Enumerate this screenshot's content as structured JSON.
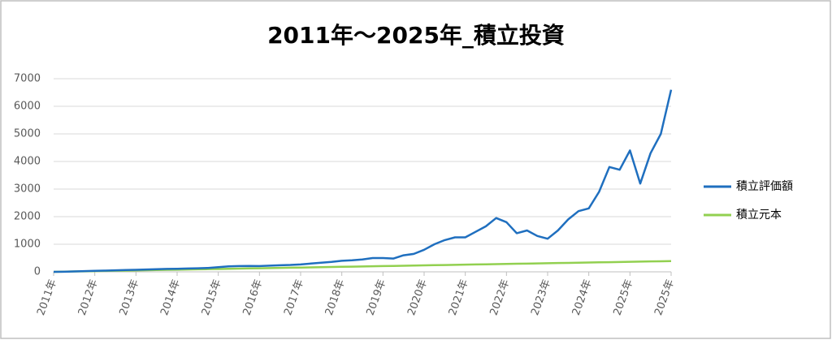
{
  "chart_data": {
    "type": "line",
    "title": "2011年～2025年_積立投資",
    "categories": [
      "2011年",
      null,
      null,
      null,
      "2012年",
      null,
      null,
      null,
      "2013年",
      null,
      null,
      null,
      "2014年",
      null,
      null,
      null,
      "2015年",
      null,
      null,
      null,
      "2016年",
      null,
      null,
      null,
      "2017年",
      null,
      null,
      null,
      "2018年",
      null,
      null,
      null,
      "2019年",
      null,
      null,
      null,
      "2020年",
      null,
      null,
      null,
      "2021年",
      null,
      null,
      null,
      "2022年",
      null,
      null,
      null,
      "2023年",
      null,
      null,
      null,
      "2024年",
      null,
      null,
      null,
      "2025年",
      null,
      null,
      null,
      "2025年"
    ],
    "series": [
      {
        "name": "積立評価額",
        "color": "#1f6fbf",
        "values": [
          0,
          5,
          15,
          25,
          35,
          45,
          55,
          65,
          75,
          85,
          95,
          105,
          110,
          120,
          130,
          140,
          170,
          200,
          210,
          215,
          210,
          225,
          240,
          250,
          270,
          300,
          330,
          360,
          400,
          420,
          450,
          500,
          500,
          480,
          600,
          650,
          800,
          1000,
          1150,
          1250,
          1250,
          1450,
          1650,
          1950,
          1800,
          1400,
          1500,
          1300,
          1200,
          1500,
          1900,
          2200,
          2300,
          2900,
          3800,
          3700,
          4400,
          3200,
          4300,
          5000,
          6600
        ]
      },
      {
        "name": "積立元本",
        "color": "#92d050",
        "values": [
          0,
          7,
          13,
          20,
          26,
          33,
          39,
          46,
          52,
          59,
          65,
          72,
          78,
          85,
          91,
          98,
          104,
          111,
          117,
          124,
          130,
          137,
          143,
          150,
          156,
          163,
          169,
          176,
          182,
          189,
          195,
          202,
          208,
          215,
          221,
          228,
          234,
          241,
          247,
          254,
          260,
          267,
          273,
          280,
          286,
          293,
          299,
          306,
          312,
          319,
          325,
          332,
          338,
          345,
          351,
          358,
          364,
          371,
          377,
          384,
          390
        ]
      }
    ],
    "ylim": [
      0,
      7000
    ],
    "yticks": [
      0,
      1000,
      2000,
      3000,
      4000,
      5000,
      6000,
      7000
    ],
    "grid": true,
    "legend": "right"
  }
}
